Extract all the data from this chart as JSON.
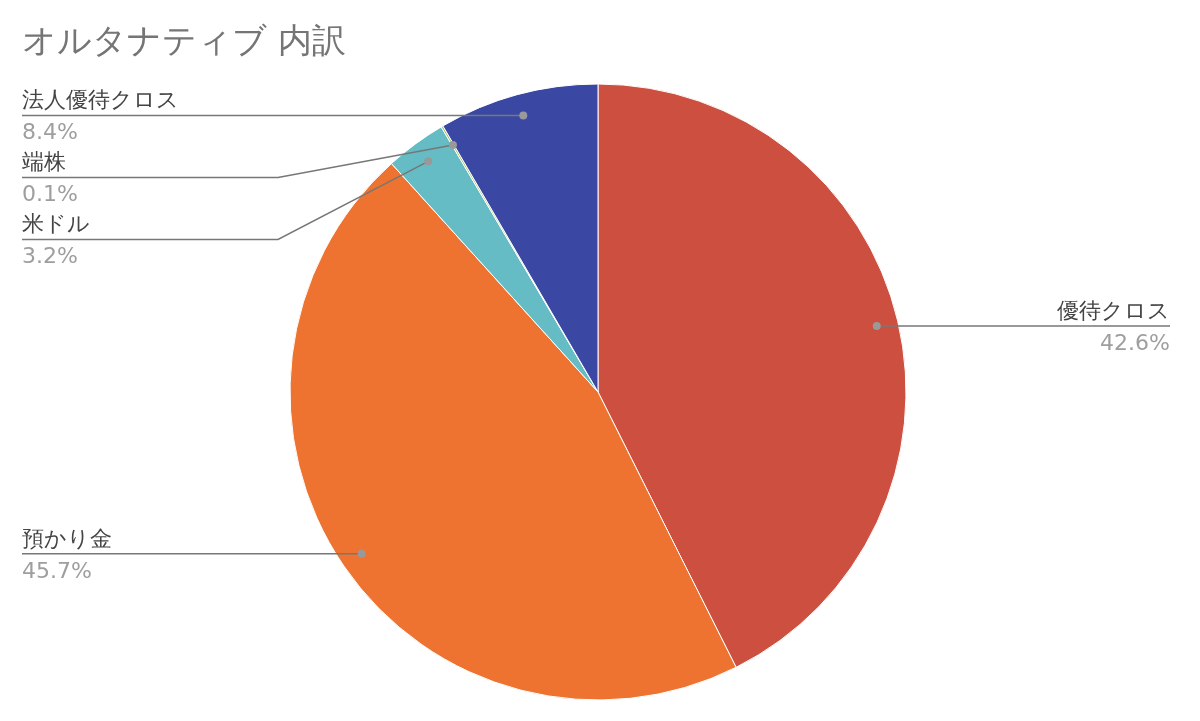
{
  "chart_data": {
    "type": "pie",
    "title": "オルタナティブ 内訳",
    "categories": [
      "優待クロス",
      "預かり金",
      "米ドル",
      "端株",
      "法人優待クロス"
    ],
    "values": [
      42.6,
      45.7,
      3.2,
      0.1,
      8.4
    ],
    "colors": [
      "#cc4f3f",
      "#ee7330",
      "#65bcc5",
      "#a9c35c",
      "#3a48a3"
    ],
    "value_labels": [
      "42.6%",
      "45.7%",
      "3.2%",
      "0.1%",
      "8.4%"
    ]
  }
}
